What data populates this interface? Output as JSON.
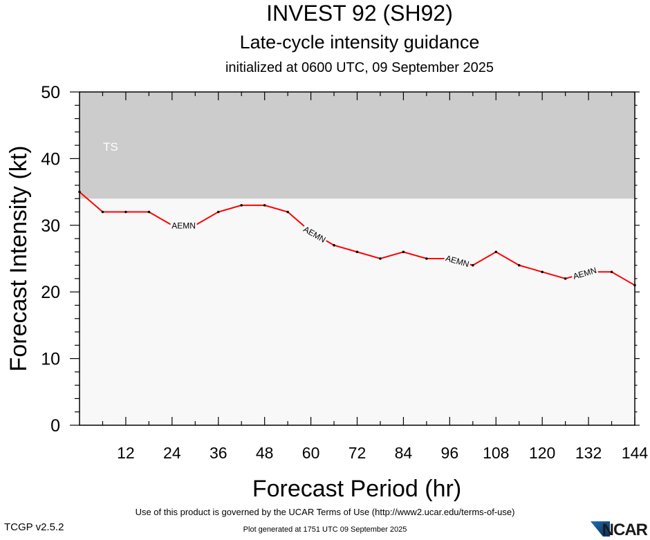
{
  "title": "INVEST 92 (SH92)",
  "subtitle": "Late-cycle intensity guidance",
  "init_line": "initialized at 0600 UTC, 09 September 2025",
  "footer": {
    "terms": "Use of this product is governed by the UCAR Terms of Use (http://www2.ucar.edu/terms-of-use)",
    "version": "TCGP v2.5.2",
    "generated": "Plot generated at 1751 UTC   09 September 2025",
    "logo_text": "NCAR"
  },
  "colors": {
    "series": "#ff0000",
    "ts_band": "#cccccc",
    "plot_bg": "#f8f8f8",
    "ts_label": "#ffffff"
  },
  "chart_data": {
    "type": "line",
    "title": "INVEST 92 (SH92)",
    "xlabel": "Forecast Period (hr)",
    "ylabel": "Forecast Intensity (kt)",
    "xlim": [
      0,
      144
    ],
    "ylim": [
      0,
      50
    ],
    "x_ticks": [
      12,
      24,
      36,
      48,
      60,
      72,
      84,
      96,
      108,
      120,
      132,
      144
    ],
    "y_ticks": [
      0,
      10,
      20,
      30,
      40,
      50
    ],
    "bands": [
      {
        "label": "TS",
        "from": 34,
        "to": 50
      }
    ],
    "series": [
      {
        "name": "AEMN",
        "x": [
          0,
          6,
          12,
          18,
          24,
          30,
          36,
          42,
          48,
          54,
          60,
          66,
          72,
          78,
          84,
          90,
          96,
          102,
          108,
          114,
          120,
          126,
          132,
          138,
          144
        ],
        "y": [
          35,
          32,
          32,
          32,
          30,
          30,
          32,
          33,
          33,
          32,
          29,
          27,
          26,
          25,
          26,
          25,
          25,
          24,
          26,
          24,
          23,
          22,
          23,
          23,
          21
        ],
        "label_at_x": [
          27,
          61,
          98,
          131
        ]
      }
    ]
  }
}
